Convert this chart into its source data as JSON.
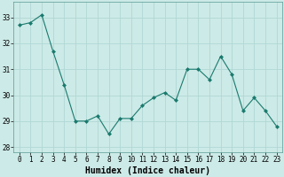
{
  "x": [
    0,
    1,
    2,
    3,
    4,
    5,
    6,
    7,
    8,
    9,
    10,
    11,
    12,
    13,
    14,
    15,
    16,
    17,
    18,
    19,
    20,
    21,
    22,
    23
  ],
  "y": [
    32.7,
    32.8,
    33.1,
    31.7,
    30.4,
    29.0,
    29.0,
    29.2,
    28.5,
    29.1,
    29.1,
    29.6,
    29.9,
    30.1,
    29.8,
    31.0,
    31.0,
    30.6,
    31.5,
    30.8,
    29.4,
    29.9,
    29.4,
    28.8
  ],
  "line_color": "#1a7a6e",
  "marker": "D",
  "marker_size": 2.0,
  "bg_color": "#cceae7",
  "grid_color": "#b0d8d5",
  "xlabel": "Humidex (Indice chaleur)",
  "ylim": [
    27.8,
    33.6
  ],
  "xlim": [
    -0.5,
    23.5
  ],
  "yticks": [
    28,
    29,
    30,
    31,
    32,
    33
  ],
  "xticks": [
    0,
    1,
    2,
    3,
    4,
    5,
    6,
    7,
    8,
    9,
    10,
    11,
    12,
    13,
    14,
    15,
    16,
    17,
    18,
    19,
    20,
    21,
    22,
    23
  ],
  "tick_label_fontsize": 5.5,
  "xlabel_fontsize": 7.0
}
